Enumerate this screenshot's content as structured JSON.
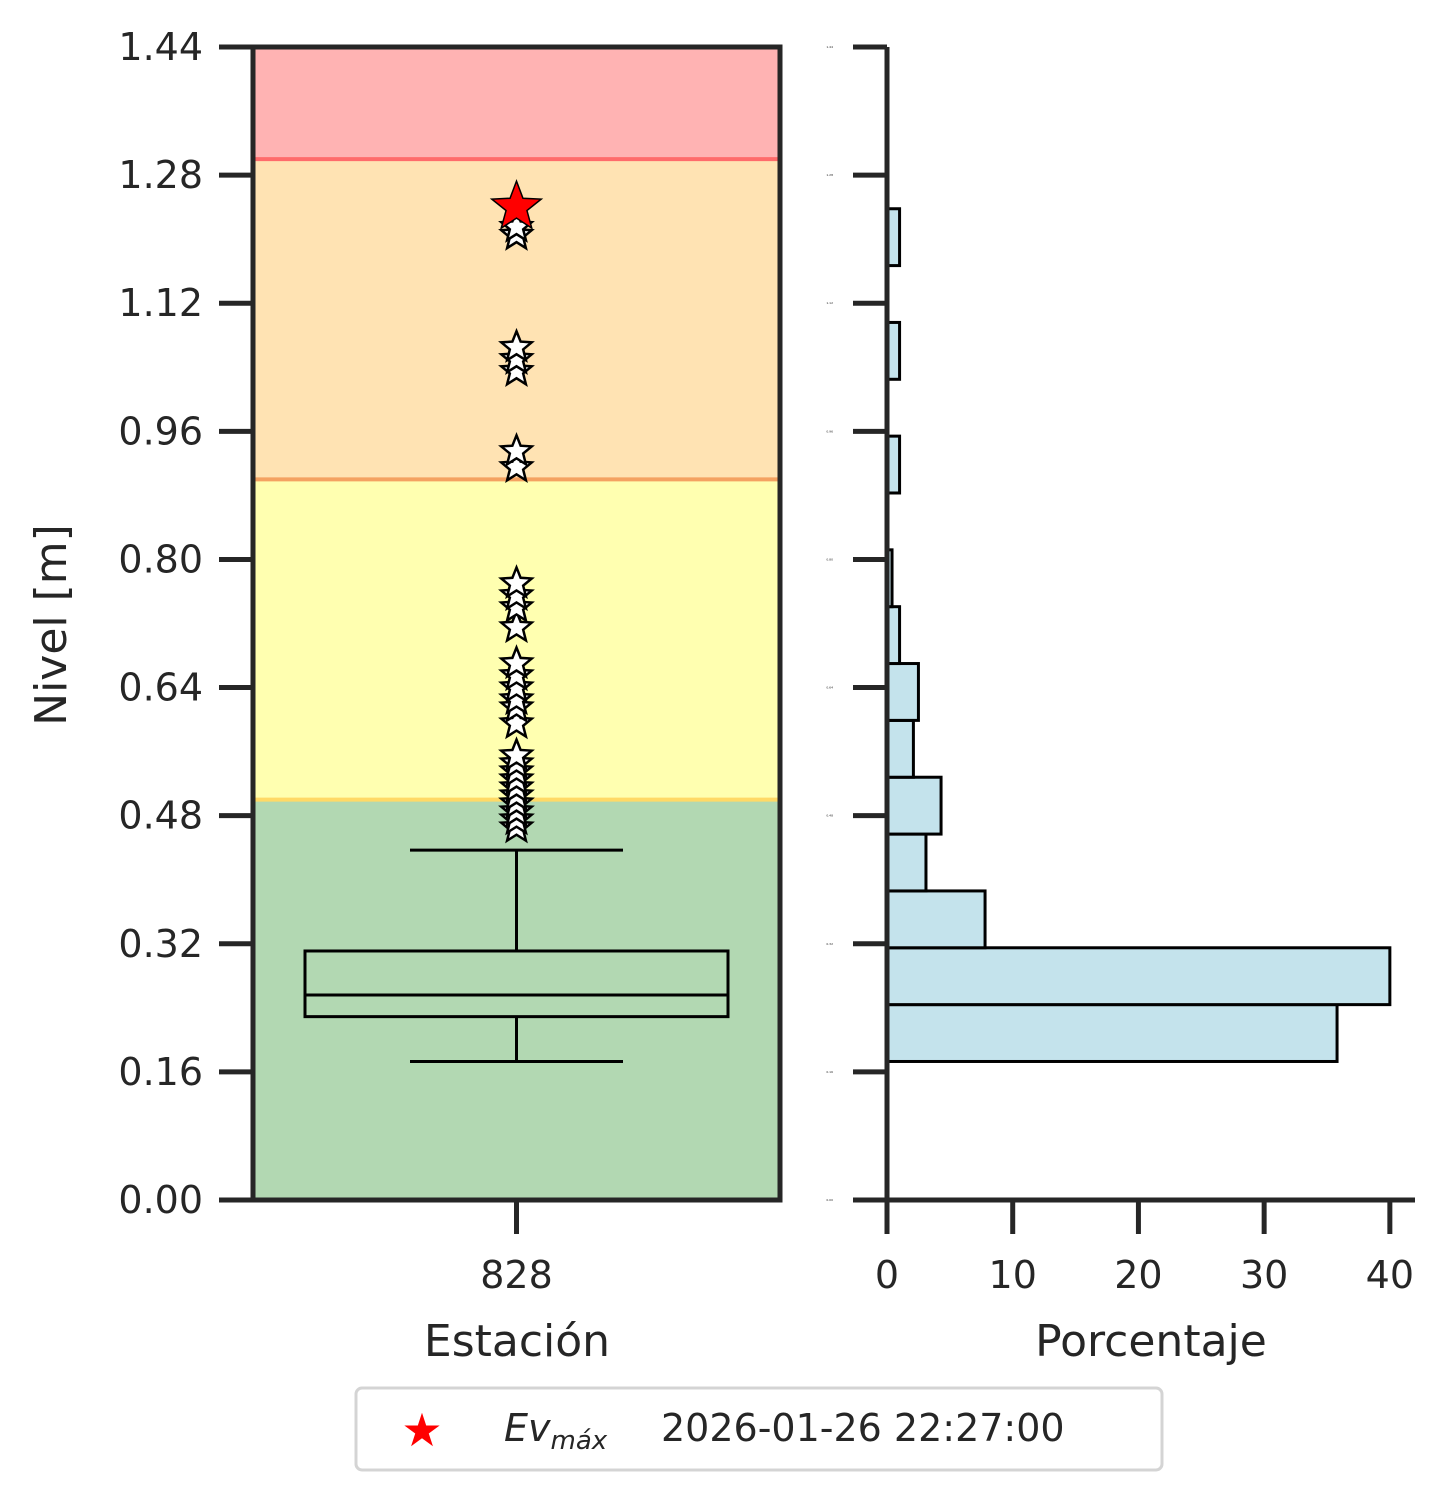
{
  "chart_data": [
    {
      "type": "box",
      "xlabel": "Estación",
      "ylabel": "Nivel [m]",
      "ylim": [
        0.0,
        1.44
      ],
      "yticks": [
        "0.00",
        "0.16",
        "0.32",
        "0.48",
        "0.64",
        "0.80",
        "0.96",
        "1.12",
        "1.28",
        "1.44"
      ],
      "categories": [
        "828"
      ],
      "bands": [
        {
          "from": 0.0,
          "to": 0.5,
          "color": "#b2d8b2",
          "edge": "#9acd32"
        },
        {
          "from": 0.5,
          "to": 0.9,
          "color": "#ffffb0",
          "edge": "#ffd966"
        },
        {
          "from": 0.9,
          "to": 1.3,
          "color": "#ffe3b3",
          "edge": "#f4a261"
        },
        {
          "from": 1.3,
          "to": 1.44,
          "color": "#ffb3b3",
          "edge": "#ff6b6b"
        }
      ],
      "box": {
        "whisker_low": 0.173,
        "q1": 0.229,
        "median": 0.256,
        "q3": 0.311,
        "whisker_high": 0.437
      },
      "outliers": [
        0.465,
        0.475,
        0.485,
        0.495,
        0.505,
        0.515,
        0.525,
        0.535,
        0.545,
        0.555,
        0.595,
        0.615,
        0.625,
        0.64,
        0.655,
        0.67,
        0.715,
        0.74,
        0.755,
        0.77,
        0.915,
        0.935,
        1.035,
        1.05,
        1.065,
        1.205,
        1.215
      ],
      "max_event": {
        "value": 1.24,
        "color": "#ff0000"
      }
    },
    {
      "type": "histogram",
      "orientation": "horizontal",
      "xlabel": "Porcentaje",
      "xlim": [
        0,
        42
      ],
      "xticks": [
        "0",
        "10",
        "20",
        "30",
        "40"
      ],
      "ylim": [
        0.0,
        1.44
      ],
      "tiny_yticks": [
        "0.00",
        "0.16",
        "0.32",
        "0.48",
        "0.64",
        "0.80",
        "0.96",
        "1.12",
        "1.28",
        "1.44"
      ],
      "bar_color": "#c4e3ec",
      "bins": [
        {
          "from": 0.173,
          "to": 0.244,
          "value": 35.8
        },
        {
          "from": 0.244,
          "to": 0.315,
          "value": 40.0
        },
        {
          "from": 0.315,
          "to": 0.386,
          "value": 7.8
        },
        {
          "from": 0.386,
          "to": 0.457,
          "value": 3.1
        },
        {
          "from": 0.457,
          "to": 0.528,
          "value": 4.3
        },
        {
          "from": 0.528,
          "to": 0.599,
          "value": 2.1
        },
        {
          "from": 0.599,
          "to": 0.67,
          "value": 2.5
        },
        {
          "from": 0.67,
          "to": 0.741,
          "value": 1.0
        },
        {
          "from": 0.741,
          "to": 0.812,
          "value": 0.4
        },
        {
          "from": 0.883,
          "to": 0.954,
          "value": 1.0
        },
        {
          "from": 1.025,
          "to": 1.096,
          "value": 1.0
        },
        {
          "from": 1.167,
          "to": 1.238,
          "value": 1.0
        }
      ]
    }
  ],
  "legend": {
    "symbol": "★",
    "label_main": "Ev",
    "label_sub": "máx",
    "date": "2026-01-26 22:27:00"
  }
}
